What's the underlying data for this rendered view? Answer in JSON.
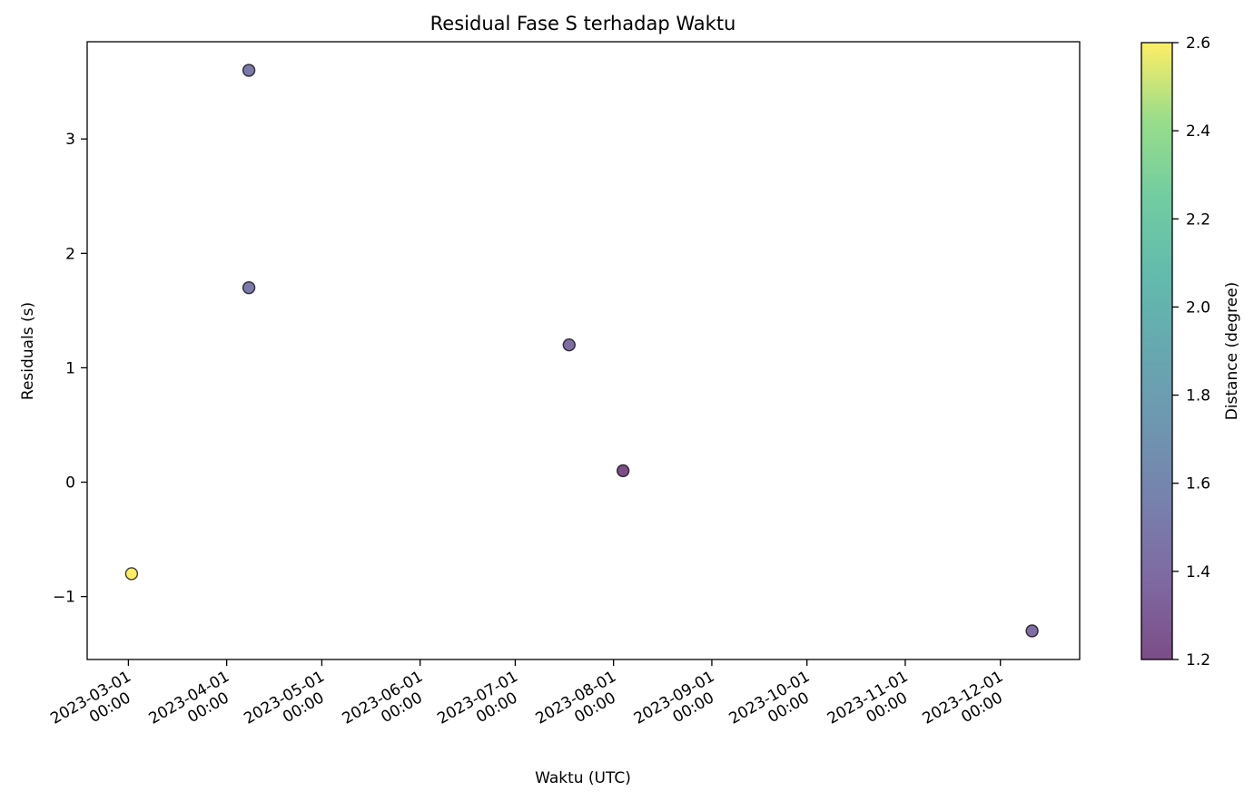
{
  "chart_data": {
    "type": "scatter",
    "title": "Residual Fase S terhadap Waktu",
    "xlabel": "Waktu (UTC)",
    "ylabel": "Residuals (s)",
    "x_ticks": [
      {
        "date": "2023-03-01",
        "time": "00:00"
      },
      {
        "date": "2023-04-01",
        "time": "00:00"
      },
      {
        "date": "2023-05-01",
        "time": "00:00"
      },
      {
        "date": "2023-06-01",
        "time": "00:00"
      },
      {
        "date": "2023-07-01",
        "time": "00:00"
      },
      {
        "date": "2023-08-01",
        "time": "00:00"
      },
      {
        "date": "2023-09-01",
        "time": "00:00"
      },
      {
        "date": "2023-10-01",
        "time": "00:00"
      },
      {
        "date": "2023-11-01",
        "time": "00:00"
      },
      {
        "date": "2023-12-01",
        "time": "00:00"
      }
    ],
    "xlim": [
      "2023-02-16",
      "2023-12-26"
    ],
    "y_ticks": [
      "−1",
      "0",
      "1",
      "2",
      "3"
    ],
    "ylim": [
      -1.55,
      3.85
    ],
    "points": [
      {
        "date": "2023-03-02",
        "y": -0.8,
        "distance": 2.6
      },
      {
        "date": "2023-04-08",
        "y": 3.6,
        "distance": 1.5
      },
      {
        "date": "2023-04-08",
        "y": 1.7,
        "distance": 1.5
      },
      {
        "date": "2023-07-18",
        "y": 1.2,
        "distance": 1.4
      },
      {
        "date": "2023-08-04",
        "y": 0.1,
        "distance": 1.2
      },
      {
        "date": "2023-12-11",
        "y": -1.3,
        "distance": 1.4
      }
    ],
    "colorbar": {
      "label": "Distance (degree)",
      "min": 1.2,
      "max": 2.6,
      "ticks": [
        "1.2",
        "1.4",
        "1.6",
        "1.8",
        "2.0",
        "2.2",
        "2.4",
        "2.6"
      ],
      "colormap": "viridis"
    },
    "grid": false
  }
}
